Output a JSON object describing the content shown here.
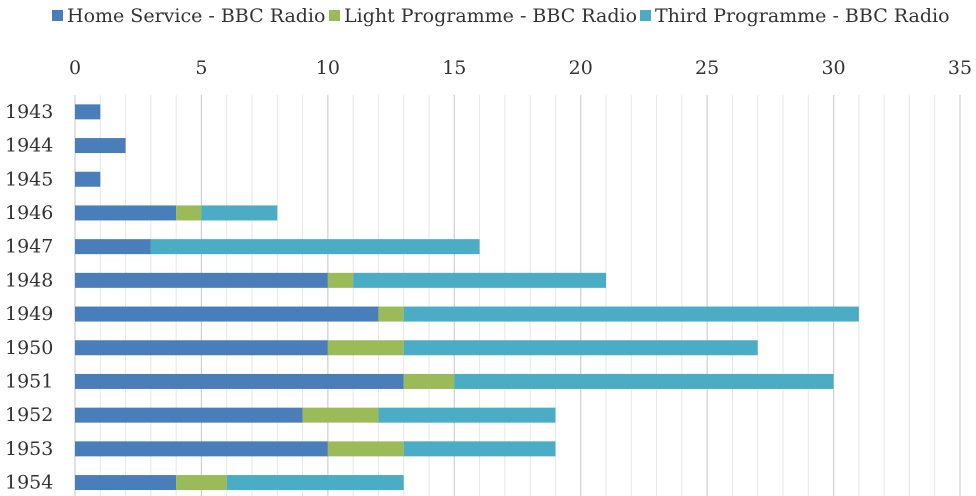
{
  "chart_data": {
    "type": "bar",
    "orientation": "horizontal",
    "stacked": true,
    "categories": [
      "1943",
      "1944",
      "1945",
      "1946",
      "1947",
      "1948",
      "1949",
      "1950",
      "1951",
      "1952",
      "1953",
      "1954"
    ],
    "series": [
      {
        "name": "Home Service - BBC Radio",
        "color": "#4a7ebb",
        "values": [
          1,
          2,
          1,
          4,
          3,
          10,
          12,
          10,
          13,
          9,
          10,
          4
        ]
      },
      {
        "name": "Light Programme - BBC Radio",
        "color": "#9bbb59",
        "values": [
          0,
          0,
          0,
          1,
          0,
          1,
          1,
          3,
          2,
          3,
          3,
          2
        ]
      },
      {
        "name": "Third Programme - BBC Radio",
        "color": "#4bacc6",
        "values": [
          0,
          0,
          0,
          3,
          13,
          10,
          18,
          14,
          15,
          7,
          6,
          7
        ]
      }
    ],
    "x_ticks": [
      "0",
      "5",
      "10",
      "15",
      "20",
      "25",
      "30",
      "35"
    ],
    "xlim": [
      0,
      35
    ],
    "minor_gridline_step": 1,
    "axis_position": "top",
    "legend_position": "top",
    "grid": true
  }
}
